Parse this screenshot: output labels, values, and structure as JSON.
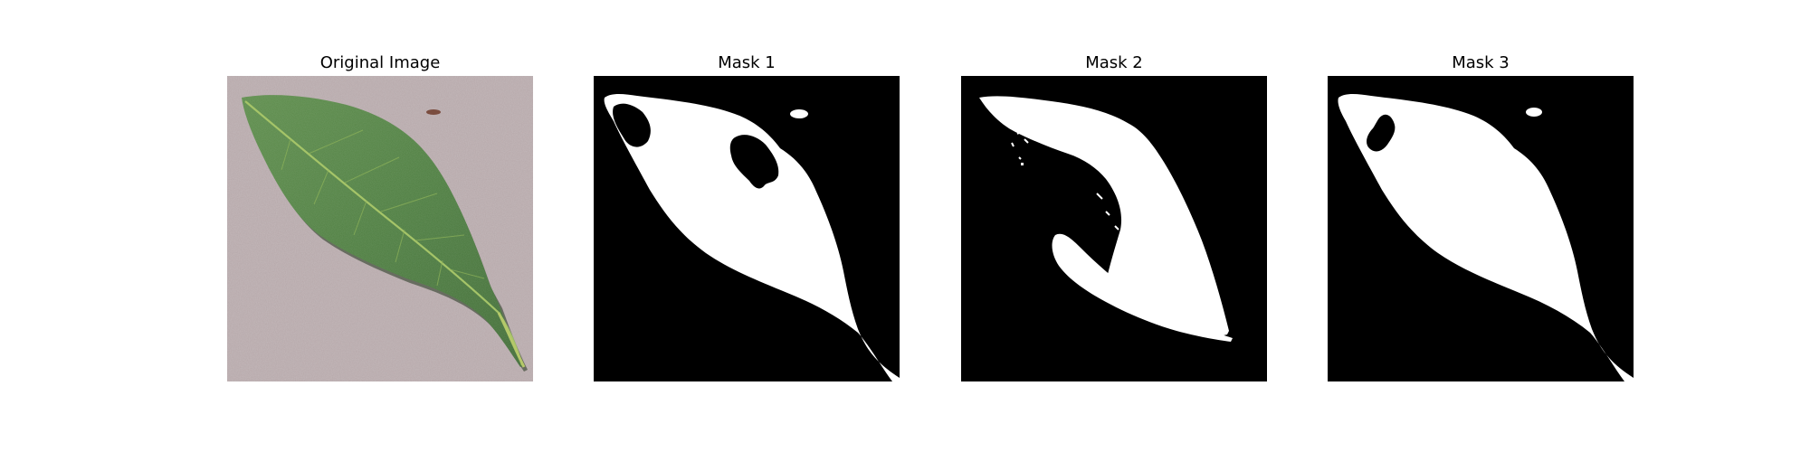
{
  "figure": {
    "panels": [
      {
        "title": "Original Image"
      },
      {
        "title": "Mask 1"
      },
      {
        "title": "Mask 2"
      },
      {
        "title": "Mask 3"
      }
    ]
  },
  "colors": {
    "mask_foreground": "#ffffff",
    "mask_background": "#000000",
    "leaf_green": "#4f7a3f",
    "leaf_vein": "#9cbf62",
    "background_stone": "#b6a8aa"
  }
}
